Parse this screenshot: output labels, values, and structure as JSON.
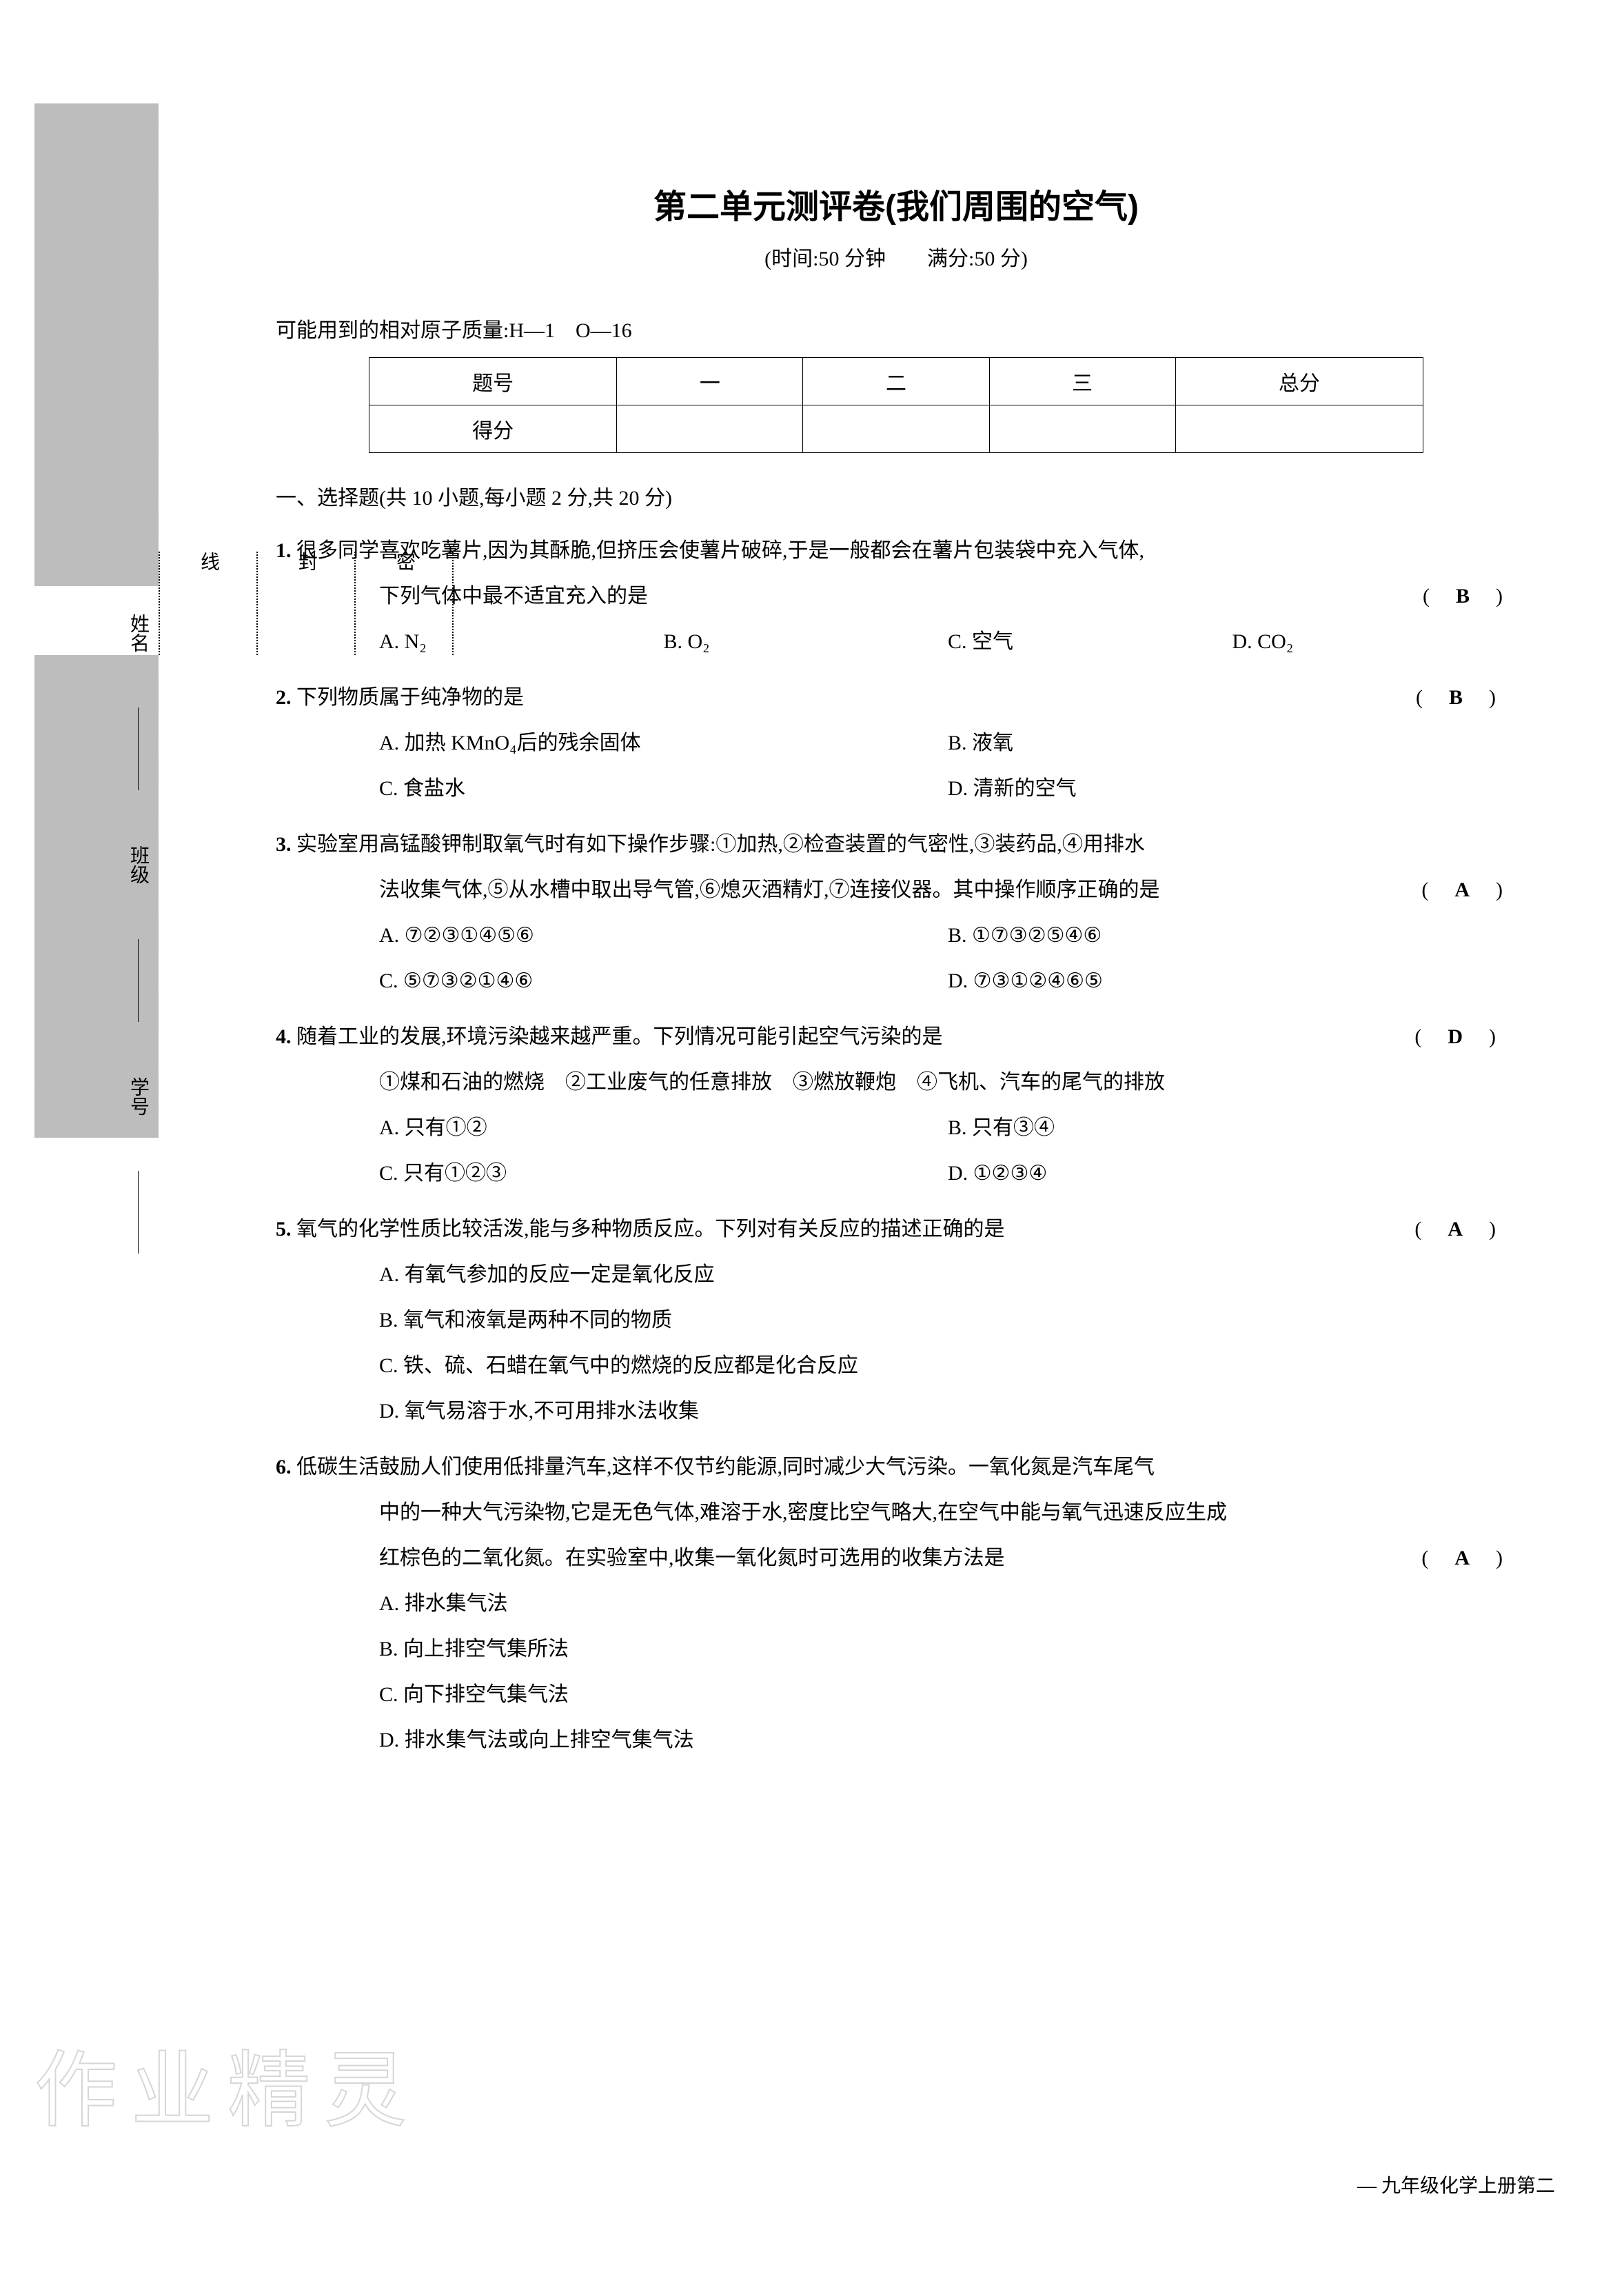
{
  "title": "第二单元测评卷(我们周围的空气)",
  "subtitle": "(时间:50 分钟　　满分:50 分)",
  "atomic_mass": "可能用到的相对原子质量:H—1　O—16",
  "score_table": {
    "headers": [
      "题号",
      "一",
      "二",
      "三",
      "总分"
    ],
    "row_label": "得分"
  },
  "section1_header": "一、选择题(共 10 小题,每小题 2 分,共 20 分)",
  "questions": [
    {
      "num": "1.",
      "text": "很多同学喜欢吃薯片,因为其酥脆,但挤压会使薯片破碎,于是一般都会在薯片包装袋中充入气体,",
      "line2": "下列气体中最不适宜充入的是",
      "answer": "B",
      "options_layout": "4col",
      "options": [
        "A. N₂",
        "B. O₂",
        "C. 空气",
        "D. CO₂"
      ]
    },
    {
      "num": "2.",
      "text": "下列物质属于纯净物的是",
      "answer": "B",
      "options_layout": "2col",
      "options": [
        "A. 加热 KMnO₄后的残余固体",
        "B. 液氧",
        "C. 食盐水",
        "D. 清新的空气"
      ]
    },
    {
      "num": "3.",
      "text": "实验室用高锰酸钾制取氧气时有如下操作步骤:①加热,②检查装置的气密性,③装药品,④用排水",
      "line2": "法收集气体,⑤从水槽中取出导气管,⑥熄灭酒精灯,⑦连接仪器。其中操作顺序正确的是",
      "answer": "A",
      "options_layout": "2col",
      "options": [
        "A. ⑦②③①④⑤⑥",
        "B. ①⑦③②⑤④⑥",
        "C. ⑤⑦③②①④⑥",
        "D. ⑦③①②④⑥⑤"
      ]
    },
    {
      "num": "4.",
      "text": "随着工业的发展,环境污染越来越严重。下列情况可能引起空气污染的是",
      "answer": "D",
      "sub_text": "①煤和石油的燃烧　②工业废气的任意排放　③燃放鞭炮　④飞机、汽车的尾气的排放",
      "options_layout": "2col",
      "options": [
        "A. 只有①②",
        "B. 只有③④",
        "C. 只有①②③",
        "D. ①②③④"
      ]
    },
    {
      "num": "5.",
      "text": "氧气的化学性质比较活泼,能与多种物质反应。下列对有关反应的描述正确的是",
      "answer": "A",
      "options_layout": "1col",
      "options": [
        "A. 有氧气参加的反应一定是氧化反应",
        "B. 氧气和液氧是两种不同的物质",
        "C. 铁、硫、石蜡在氧气中的燃烧的反应都是化合反应",
        "D. 氧气易溶于水,不可用排水法收集"
      ]
    },
    {
      "num": "6.",
      "text": "低碳生活鼓励人们使用低排量汽车,这样不仅节约能源,同时减少大气污染。一氧化氮是汽车尾气",
      "line2": "中的一种大气污染物,它是无色气体,难溶于水,密度比空气略大,在空气中能与氧气迅速反应生成",
      "line3": "红棕色的二氧化氮。在实验室中,收集一氧化氮时可选用的收集方法是",
      "answer": "A",
      "options_layout": "1col",
      "options": [
        "A. 排水集气法",
        "B. 向上排空气集所法",
        "C. 向下排空气集气法",
        "D. 排水集气法或向上排空气集气法"
      ]
    }
  ],
  "binding": {
    "labels": [
      "密",
      "封",
      "线"
    ],
    "info_labels": [
      "姓名",
      "班级",
      "学号"
    ]
  },
  "footer": "— 九年级化学上册第二",
  "watermark": "作业精灵"
}
